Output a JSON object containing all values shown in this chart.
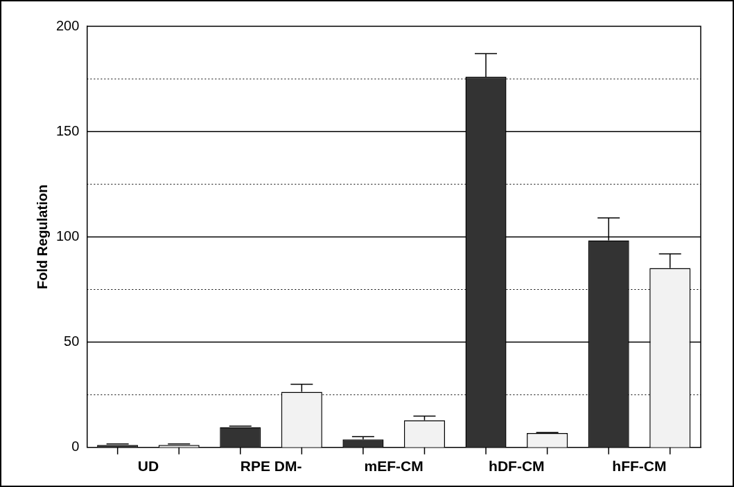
{
  "chart_data": {
    "type": "bar",
    "ylabel": "Fold Regulation",
    "categories": [
      "UD",
      "RPE DM-",
      "mEF-CM",
      "hDF-CM",
      "hFF-CM"
    ],
    "series": [
      {
        "color": "#333333",
        "values": [
          1.2,
          9.6,
          3.8,
          176,
          98.3
        ],
        "errors": [
          [
            1.2,
            1.7
          ],
          [
            9.6,
            10.1
          ],
          [
            3.8,
            5.1
          ],
          [
            176,
            187
          ],
          [
            98.3,
            109
          ]
        ]
      },
      {
        "color": "#f2f2f2",
        "values": [
          1.2,
          26.4,
          12.9,
          6.8,
          85.2
        ],
        "errors": [
          [
            1.2,
            1.7
          ],
          [
            26.4,
            30
          ],
          [
            12.9,
            14.9
          ],
          [
            6.8,
            7.1
          ],
          [
            85.2,
            91.9
          ]
        ]
      }
    ],
    "ylim": [
      0,
      200
    ],
    "yticks": [
      0,
      {
        "value": 25,
        "label": null
      },
      50,
      {
        "value": 75,
        "label": null
      },
      100,
      {
        "value": 125,
        "label": null
      },
      150,
      {
        "value": 175,
        "label": null
      },
      200
    ],
    "grid": true,
    "legend": false
  }
}
